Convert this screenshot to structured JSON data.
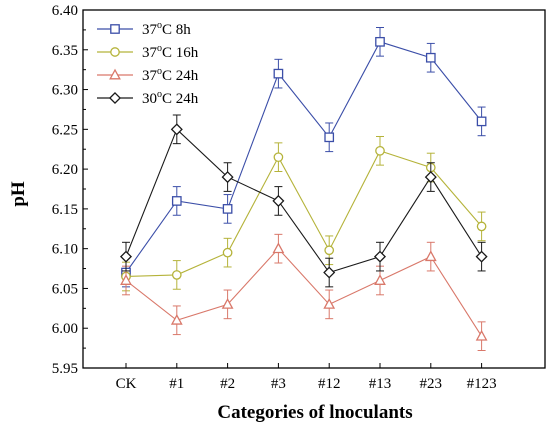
{
  "chart_data": {
    "type": "line",
    "title": "",
    "xlabel": "Categories of lnoculants",
    "ylabel": "pH",
    "ylim": [
      5.95,
      6.4
    ],
    "yticks": [
      "5.95",
      "6.00",
      "6.05",
      "6.10",
      "6.15",
      "6.20",
      "6.25",
      "6.30",
      "6.35",
      "6.40"
    ],
    "categories": [
      "CK",
      "#1",
      "#2",
      "#3",
      "#12",
      "#13",
      "#23",
      "#123"
    ],
    "legend_position": "top-left",
    "grid": false,
    "series": [
      {
        "name": "37°C 8h",
        "name_base": "37",
        "name_sup": "o",
        "name_rest": "C 8h",
        "color": "#3b4ea8",
        "marker": "square",
        "values": [
          6.07,
          6.16,
          6.15,
          6.32,
          6.24,
          6.36,
          6.34,
          6.26
        ],
        "errors": [
          0.018,
          0.018,
          0.018,
          0.018,
          0.018,
          0.018,
          0.018,
          0.018
        ]
      },
      {
        "name": "37°C 16h",
        "name_base": "37",
        "name_sup": "o",
        "name_rest": "C 16h",
        "color": "#b5b33a",
        "marker": "circle",
        "values": [
          6.065,
          6.067,
          6.095,
          6.215,
          6.098,
          6.223,
          6.202,
          6.128
        ],
        "errors": [
          0.018,
          0.018,
          0.018,
          0.018,
          0.018,
          0.018,
          0.018,
          0.018
        ]
      },
      {
        "name": "37°C 24h",
        "name_base": "37",
        "name_sup": "o",
        "name_rest": "C 24h",
        "color": "#d9786a",
        "marker": "triangle",
        "values": [
          6.06,
          6.01,
          6.03,
          6.1,
          6.03,
          6.06,
          6.09,
          5.99
        ],
        "errors": [
          0.018,
          0.018,
          0.018,
          0.018,
          0.018,
          0.018,
          0.018,
          0.018
        ]
      },
      {
        "name": "30°C 24h",
        "name_base": "30",
        "name_sup": "o",
        "name_rest": "C 24h",
        "color": "#1a1a1a",
        "marker": "diamond",
        "values": [
          6.09,
          6.25,
          6.19,
          6.16,
          6.07,
          6.09,
          6.19,
          6.09
        ],
        "errors": [
          0.018,
          0.018,
          0.018,
          0.018,
          0.018,
          0.018,
          0.018,
          0.018
        ]
      }
    ]
  }
}
